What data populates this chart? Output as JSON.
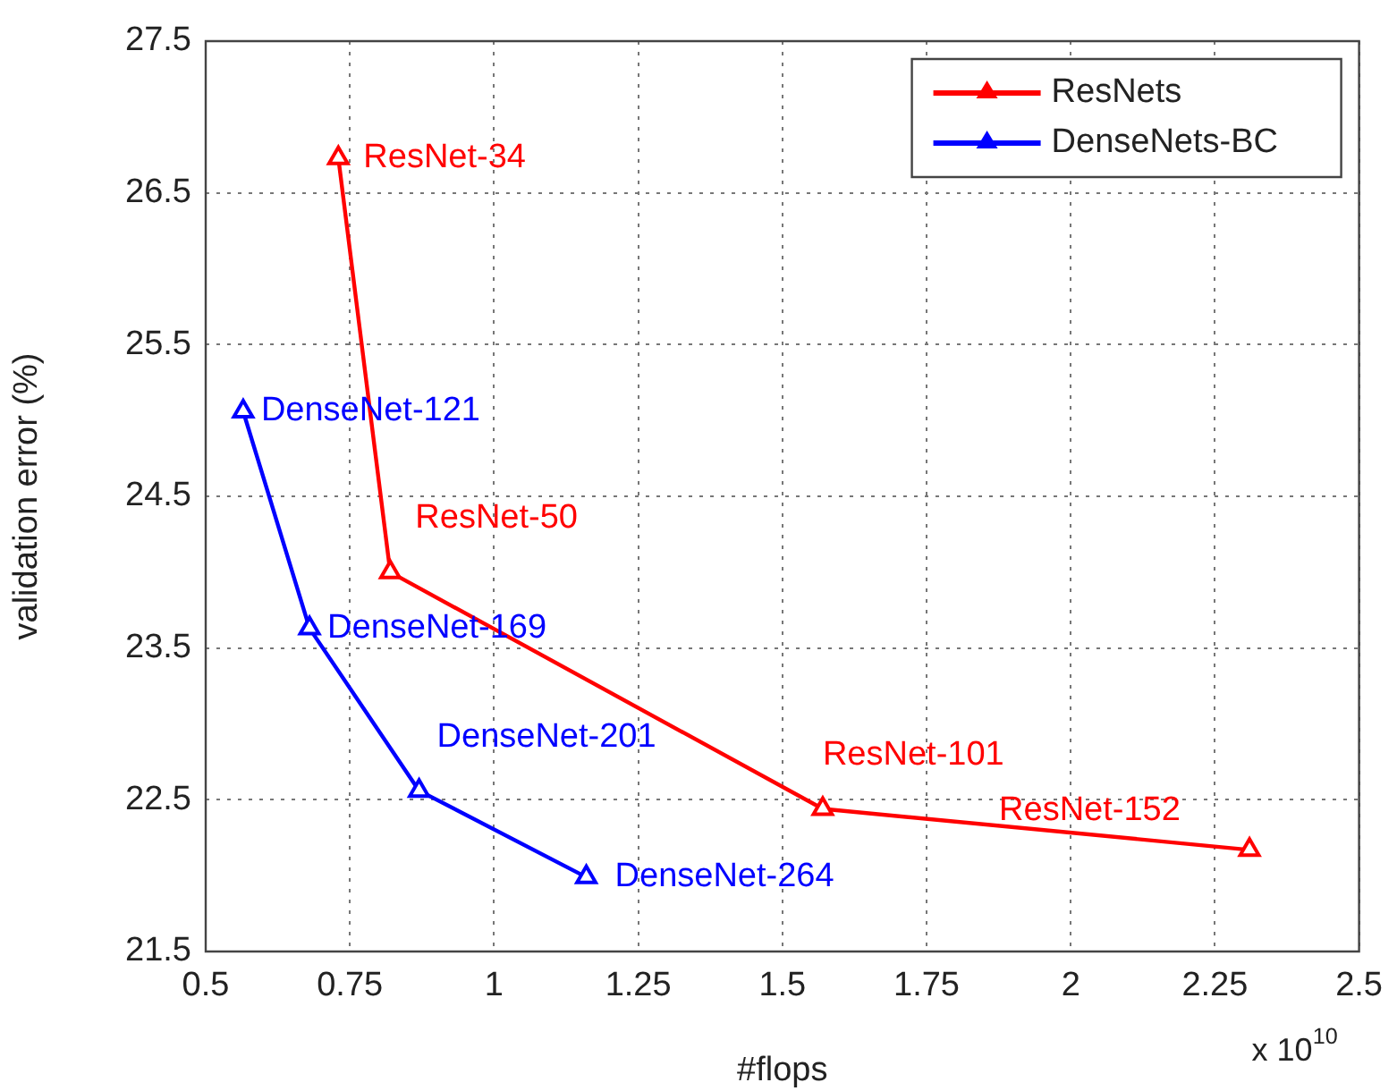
{
  "chart_data": {
    "type": "line",
    "xlabel": "#flops",
    "ylabel": "validation error (%)",
    "xlim": [
      0.5,
      2.5
    ],
    "xticks": [
      0.5,
      0.75,
      1,
      1.25,
      1.5,
      1.75,
      2,
      2.25,
      2.5
    ],
    "ylim": [
      21.5,
      27.5
    ],
    "yticks": [
      21.5,
      22.5,
      23.5,
      24.5,
      25.5,
      26.5,
      27.5
    ],
    "grid": true,
    "legend": "top right",
    "marker": "triangle",
    "line_style": "solid",
    "series": [
      {
        "name": "ResNets",
        "color": "#ff0000",
        "x": [
          0.73,
          0.82,
          1.57,
          2.31
        ],
        "values": [
          26.73,
          24.0,
          22.44,
          22.17
        ]
      },
      {
        "name": "DenseNets-BC",
        "color": "#0000ff",
        "x": [
          0.565,
          0.68,
          0.87,
          1.16
        ],
        "values": [
          25.06,
          23.63,
          22.56,
          21.99
        ]
      }
    ],
    "annotations": [
      {
        "text": "ResNet-34",
        "x": 0.73,
        "y": 26.73
      },
      {
        "text": "ResNet-50",
        "x": 0.82,
        "y": 24.0
      },
      {
        "text": "ResNet-101",
        "x": 1.57,
        "y": 22.44
      },
      {
        "text": "ResNet-152",
        "x": 2.31,
        "y": 22.17
      },
      {
        "text": "DenseNet-121",
        "x": 0.565,
        "y": 25.06
      },
      {
        "text": "DenseNet-169",
        "x": 0.68,
        "y": 23.63
      },
      {
        "text": "DenseNet-201",
        "x": 0.87,
        "y": 22.56
      },
      {
        "text": "DenseNet-264",
        "x": 1.16,
        "y": 21.99
      },
      "x 10$^{10}$"
    ]
  }
}
